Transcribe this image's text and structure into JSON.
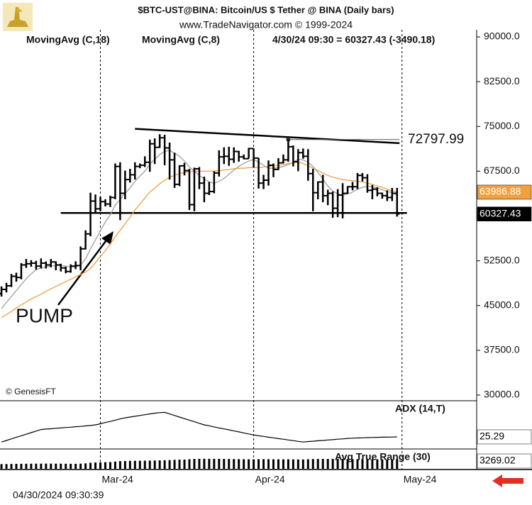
{
  "chart_data": {
    "type": "ohlc",
    "title": "$BTC-UST@BINA:  Bitcoin/US $ Tether @ BINA  (Daily bars)",
    "subtitle": "www.TradeNavigator.com © 1999-2024",
    "quote": "4/30/24 09:30 = 60327.43 (-3490.18)",
    "credit": "© GenesisFT",
    "annotation": "PUMP",
    "timestamp": "04/30/2024 09:30:39",
    "color": "#000000",
    "x": [
      0,
      1,
      2,
      3,
      4,
      5,
      6,
      7,
      8,
      9,
      10,
      11,
      12,
      13,
      14,
      15,
      16,
      17,
      18,
      19,
      20,
      21,
      22,
      23,
      24,
      25,
      26,
      27,
      28,
      29,
      30,
      31,
      32,
      33,
      34,
      35,
      36,
      37,
      38,
      39,
      40,
      41,
      42,
      43,
      44,
      45,
      46,
      47,
      48,
      49,
      50,
      51,
      52,
      53,
      54,
      55,
      56,
      57,
      58,
      59,
      60,
      61,
      62,
      63,
      64,
      65,
      66,
      67,
      68,
      69,
      70,
      71,
      72,
      73,
      74,
      75,
      76,
      77,
      78,
      79,
      80
    ],
    "xlim": [
      -0.3,
      96.1
    ],
    "xticks": [
      {
        "value": 20,
        "label": "Mar-24"
      },
      {
        "value": 51,
        "label": "Apr-24"
      },
      {
        "value": 81,
        "label": "May-24"
      }
    ],
    "ylim": [
      29050,
      91190
    ],
    "yticks": [
      {
        "value": 90000,
        "label": "90000.0"
      },
      {
        "value": 82500,
        "label": "82500.0"
      },
      {
        "value": 75000,
        "label": "75000.0"
      },
      {
        "value": 67500,
        "label": "67500.0"
      },
      {
        "value": 60000,
        "label": "60000.0"
      },
      {
        "value": 52500,
        "label": "52500.0"
      },
      {
        "value": 45000,
        "label": "45000.0"
      },
      {
        "value": 37500,
        "label": "37500.0"
      },
      {
        "value": 30000,
        "label": "30000.0"
      }
    ],
    "open": [
      47000,
      47700,
      48300,
      49900,
      49700,
      51800,
      52000,
      52100,
      51600,
      52100,
      51800,
      52300,
      51800,
      51300,
      50700,
      51600,
      51700,
      54500,
      57000,
      62500,
      61200,
      62400,
      62000,
      63100,
      68300,
      63800,
      66100,
      66900,
      68300,
      68500,
      69000,
      72100,
      71500,
      73100,
      71400,
      69400,
      65300,
      68400,
      67600,
      61900,
      67900,
      65500,
      63800,
      64100,
      67200,
      69900,
      70000,
      69500,
      70800,
      69900,
      69600,
      71300,
      69700,
      65500,
      66000,
      68500,
      67800,
      68900,
      69400,
      71600,
      69100,
      70600,
      70000,
      67100,
      63900,
      65700,
      63400,
      63800,
      61300,
      63500,
      63800,
      64900,
      64900,
      66800,
      66400,
      64300,
      64500,
      63800,
      63400,
      63100,
      63800
    ],
    "high": [
      48200,
      48800,
      50300,
      50500,
      52100,
      52800,
      52600,
      52500,
      52900,
      52400,
      52800,
      52400,
      52000,
      51500,
      51900,
      52400,
      54900,
      57600,
      63900,
      63600,
      63200,
      62800,
      63400,
      68800,
      69000,
      67600,
      67900,
      69000,
      68800,
      70000,
      72800,
      73000,
      73700,
      73600,
      72300,
      70600,
      68500,
      68900,
      67900,
      68100,
      68200,
      66600,
      65700,
      67500,
      71000,
      71500,
      71600,
      71500,
      70900,
      70300,
      71400,
      71300,
      69700,
      66900,
      69300,
      68800,
      69700,
      70300,
      72797.99,
      71800,
      71200,
      71300,
      71200,
      67900,
      65800,
      66900,
      64400,
      64100,
      64500,
      65500,
      65000,
      65700,
      67200,
      67200,
      67000,
      65200,
      64800,
      63900,
      64300,
      64700,
      64700
    ],
    "low": [
      46500,
      47200,
      48100,
      49000,
      49400,
      51300,
      51500,
      51000,
      51200,
      51200,
      51400,
      50900,
      50700,
      50400,
      50500,
      51100,
      50900,
      54400,
      56600,
      60400,
      60800,
      61600,
      61500,
      62800,
      59300,
      62800,
      65600,
      66100,
      68000,
      68200,
      67400,
      68700,
      71400,
      68500,
      66100,
      64700,
      65000,
      66800,
      61000,
      60800,
      64500,
      62300,
      63500,
      63800,
      66600,
      68700,
      68400,
      68900,
      69100,
      69500,
      69600,
      68100,
      64600,
      64500,
      65100,
      66500,
      67700,
      68800,
      69100,
      68300,
      67500,
      69600,
      65900,
      60800,
      62800,
      62300,
      61800,
      59700,
      59800,
      59600,
      63700,
      64300,
      64500,
      65800,
      63900,
      62800,
      63300,
      62900,
      62500,
      62500,
      59900
    ],
    "close": [
      47700,
      48300,
      49900,
      49700,
      51800,
      52000,
      52100,
      51600,
      52100,
      51800,
      52300,
      51800,
      51300,
      50700,
      51600,
      51700,
      54500,
      57000,
      62500,
      61200,
      62400,
      62000,
      63100,
      68300,
      63800,
      66100,
      66900,
      68300,
      68500,
      69000,
      72100,
      71500,
      73100,
      71400,
      69400,
      65300,
      68400,
      67600,
      61900,
      67900,
      65500,
      63800,
      64100,
      67200,
      69900,
      70000,
      69500,
      70800,
      69900,
      69600,
      71300,
      69700,
      65500,
      66000,
      68500,
      67800,
      68900,
      69400,
      71600,
      69100,
      70600,
      70000,
      67100,
      63900,
      65700,
      63400,
      63800,
      61300,
      63500,
      63800,
      64900,
      64900,
      66800,
      66400,
      64300,
      64500,
      63800,
      63400,
      63100,
      63800,
      60327.43
    ],
    "series": [
      {
        "name": "MovingAvg (C,18)",
        "color": "#f0a040",
        "values": [
          43000,
          43500,
          44000,
          44600,
          45100,
          45600,
          46100,
          46500,
          46900,
          47400,
          47800,
          48200,
          48600,
          49000,
          49400,
          49800,
          50200,
          50600,
          51200,
          52200,
          53200,
          54200,
          55300,
          56500,
          57600,
          58700,
          59800,
          61000,
          62000,
          63000,
          64000,
          64700,
          65400,
          66000,
          66500,
          66800,
          67100,
          67300,
          67400,
          67500,
          67500,
          67500,
          67500,
          67500,
          67600,
          67700,
          67800,
          67900,
          68000,
          68000,
          68100,
          68100,
          68100,
          68200,
          68300,
          68400,
          68500,
          68600,
          68800,
          68900,
          69000,
          68800,
          68400,
          68000,
          67600,
          67200,
          66800,
          66500,
          66300,
          66100,
          66000,
          65900,
          65800,
          65700,
          65500,
          65300,
          65000,
          64800,
          64500,
          64200,
          63986.88
        ]
      },
      {
        "name": "MovingAvg (C,8)",
        "color": "#a0a0a0",
        "values": [
          44500,
          45500,
          46500,
          47500,
          48500,
          49500,
          50300,
          51000,
          51300,
          51500,
          51600,
          51700,
          51700,
          51600,
          51500,
          51500,
          51800,
          52800,
          54500,
          56000,
          57500,
          59000,
          60200,
          61800,
          62800,
          63800,
          64700,
          65800,
          66700,
          67500,
          68700,
          69500,
          70300,
          70800,
          71000,
          70500,
          70000,
          69200,
          68200,
          67500,
          66800,
          66200,
          65700,
          65500,
          65800,
          66300,
          67000,
          67700,
          68300,
          68800,
          69200,
          69500,
          69000,
          68500,
          68000,
          68000,
          68100,
          68300,
          68600,
          69000,
          69500,
          69400,
          69000,
          68300,
          67300,
          66200,
          65000,
          64200,
          63700,
          63500,
          63700,
          64000,
          64500,
          64800,
          65000,
          64900,
          64700,
          64400,
          64100,
          63900,
          63500
        ]
      }
    ],
    "lines": [
      {
        "x": [
          12,
          82
        ],
        "y": [
          60500,
          60500
        ]
      },
      {
        "x": [
          27,
          80.5
        ],
        "y": [
          74600,
          72200
        ]
      },
      {
        "x": [
          58,
          80.5
        ],
        "y": [
          72797.99,
          72797.99
        ]
      }
    ],
    "adx": {
      "name": "ADX (14,T)",
      "color": "#000000",
      "ylim": [
        18,
        48
      ],
      "values": [
        22,
        23,
        24,
        25,
        26,
        27,
        28,
        29,
        30,
        30.3,
        30.5,
        30.8,
        31,
        31.3,
        31.5,
        31.8,
        32,
        32.3,
        32.6,
        33,
        33.7,
        34.5,
        35.2,
        36,
        36.8,
        37.5,
        38,
        38.5,
        39,
        39.5,
        40,
        40.5,
        40.8,
        41,
        40,
        39,
        38,
        37,
        36,
        35,
        34,
        33,
        32.4,
        31.7,
        31,
        30.4,
        29.8,
        29.1,
        28.5,
        27.8,
        27.2,
        26.5,
        26,
        25.6,
        25.1,
        24.7,
        24.2,
        23.8,
        23.3,
        22.9,
        22.4,
        22,
        22.3,
        22.5,
        22.8,
        23,
        23.3,
        23.5,
        23.8,
        24,
        24.3,
        24.5,
        24.6,
        24.7,
        24.8,
        24.9,
        25,
        25.1,
        25.1,
        25.2,
        25.29
      ]
    },
    "atr": {
      "name": "Avg True Range (30)",
      "color": "#000000",
      "ylim": [
        0,
        6000
      ],
      "values": [
        1600,
        1620,
        1650,
        1680,
        1700,
        1720,
        1740,
        1750,
        1760,
        1770,
        1760,
        1750,
        1740,
        1720,
        1700,
        1690,
        1750,
        1850,
        2050,
        2150,
        2200,
        2250,
        2280,
        2450,
        2600,
        2650,
        2700,
        2720,
        2740,
        2760,
        2800,
        2830,
        2860,
        2900,
        2950,
        3050,
        3100,
        3120,
        3250,
        3350,
        3380,
        3400,
        3380,
        3380,
        3370,
        3350,
        3320,
        3300,
        3280,
        3250,
        3230,
        3220,
        3280,
        3270,
        3260,
        3240,
        3220,
        3210,
        3220,
        3200,
        3190,
        3170,
        3240,
        3320,
        3330,
        3350,
        3340,
        3360,
        3350,
        3330,
        3300,
        3280,
        3280,
        3260,
        3260,
        3240,
        3220,
        3200,
        3180,
        3160,
        3269.02
      ]
    }
  }
}
